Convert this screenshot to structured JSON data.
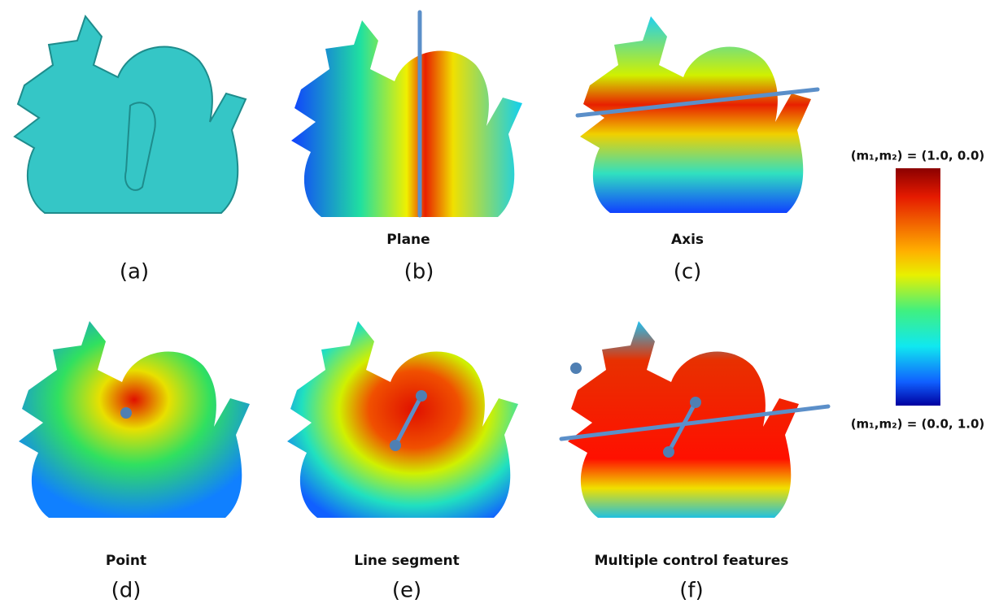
{
  "panels": [
    {
      "label": "(a)"
    },
    {
      "caption": "Plane",
      "label": "(b)"
    },
    {
      "caption": "Axis",
      "label": "(c)"
    },
    {
      "caption": "Point",
      "label": "(d)"
    },
    {
      "caption": "Line segment",
      "label": "(e)"
    },
    {
      "caption": "Multiple control features",
      "label": "(f)"
    }
  ],
  "colorbar": {
    "top_label": "(m₁,m₂) = (1.0, 0.0)",
    "bottom_label": "(m₁,m₂) = (0.0, 1.0)"
  }
}
